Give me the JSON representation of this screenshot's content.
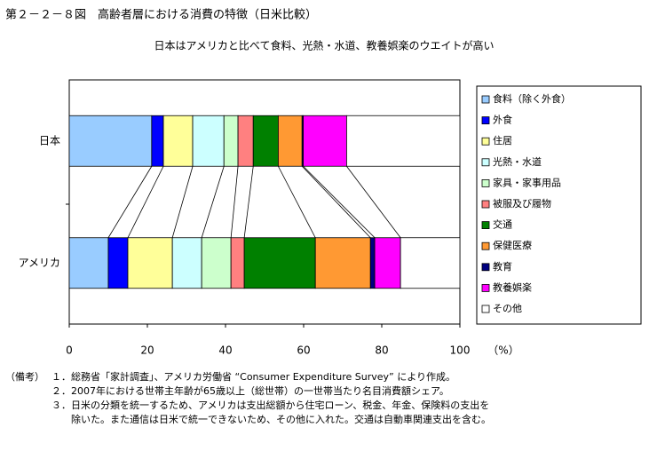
{
  "chart_data": {
    "type": "bar",
    "orientation": "horizontal",
    "stacked": true,
    "title": "第２－２－８図　高齢者層における消費の特徴（日米比較）",
    "subtitle": "日本はアメリカと比べて食料、光熱・水道、教養娯楽のウエイトが高い",
    "categories": [
      "日本",
      "アメリカ"
    ],
    "series": [
      {
        "name": "食料（除く外食）",
        "color": "#99ccff",
        "values": [
          21.1,
          10.0
        ]
      },
      {
        "name": "外食",
        "color": "#0000ff",
        "values": [
          3.0,
          5.0
        ]
      },
      {
        "name": "住居",
        "color": "#ffff99",
        "values": [
          7.5,
          11.4
        ]
      },
      {
        "name": "光熱・水道",
        "color": "#ccffff",
        "values": [
          8.0,
          7.5
        ]
      },
      {
        "name": "家具・家事用品",
        "color": "#ccffcc",
        "values": [
          3.6,
          7.5
        ]
      },
      {
        "name": "被服及び履物",
        "color": "#ff8080",
        "values": [
          3.9,
          3.4
        ]
      },
      {
        "name": "交通",
        "color": "#008000",
        "values": [
          6.4,
          18.2
        ]
      },
      {
        "name": "保健医療",
        "color": "#ff9933",
        "values": [
          6.1,
          14.1
        ]
      },
      {
        "name": "教育",
        "color": "#000080",
        "values": [
          0.3,
          1.1
        ]
      },
      {
        "name": "教養娯楽",
        "color": "#ff00ff",
        "values": [
          11.1,
          6.6
        ]
      },
      {
        "name": "その他",
        "color": "#ffffff",
        "values": [
          29.0,
          15.2
        ]
      }
    ],
    "xlim": [
      0,
      100
    ],
    "xticks": [
      0,
      20,
      40,
      60,
      80,
      100
    ],
    "x_unit": "（%）",
    "notes_label": "（備考）",
    "notes": [
      "１．総務省「家計調査」、アメリカ労働省 “Consumer Expenditure Survey” により作成。",
      "２．2007年における世帯主年齢が65歳以上（総世帯）の一世帯当たり名目消費額シェア。",
      "３．日米の分類を統一するため、アメリカは支出総額から住宅ローン、税金、年金、保険料の支出を",
      "　　除いた。また通信は日米で統一できないため、その他に入れた。交通は自動車関連支出を含む。"
    ]
  }
}
